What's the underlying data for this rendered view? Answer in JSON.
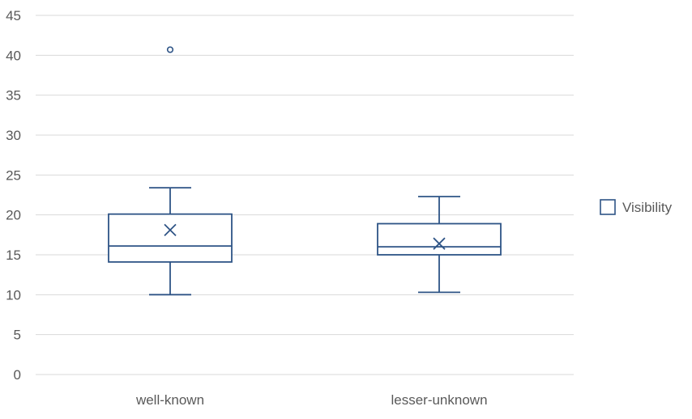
{
  "chart_data": {
    "type": "boxplot",
    "title": "",
    "xlabel": "",
    "ylabel": "",
    "ylim": [
      0,
      45
    ],
    "yticks": [
      0,
      5,
      10,
      15,
      20,
      25,
      30,
      35,
      40,
      45
    ],
    "grid": true,
    "legend_position": "right",
    "colors": {
      "series": "#2E5486",
      "grid": "#D9D9D9",
      "text": "#595959"
    },
    "series": [
      {
        "name": "Visibility",
        "boxes": [
          {
            "category": "well-known",
            "min": 10.0,
            "q1": 14.1,
            "median": 16.1,
            "q3": 20.1,
            "max": 23.4,
            "mean": 18.1,
            "outliers": [
              40.7
            ]
          },
          {
            "category": "lesser-unknown",
            "min": 10.3,
            "q1": 15.0,
            "median": 16.0,
            "q3": 18.9,
            "max": 22.3,
            "mean": 16.4,
            "outliers": []
          }
        ]
      }
    ]
  }
}
